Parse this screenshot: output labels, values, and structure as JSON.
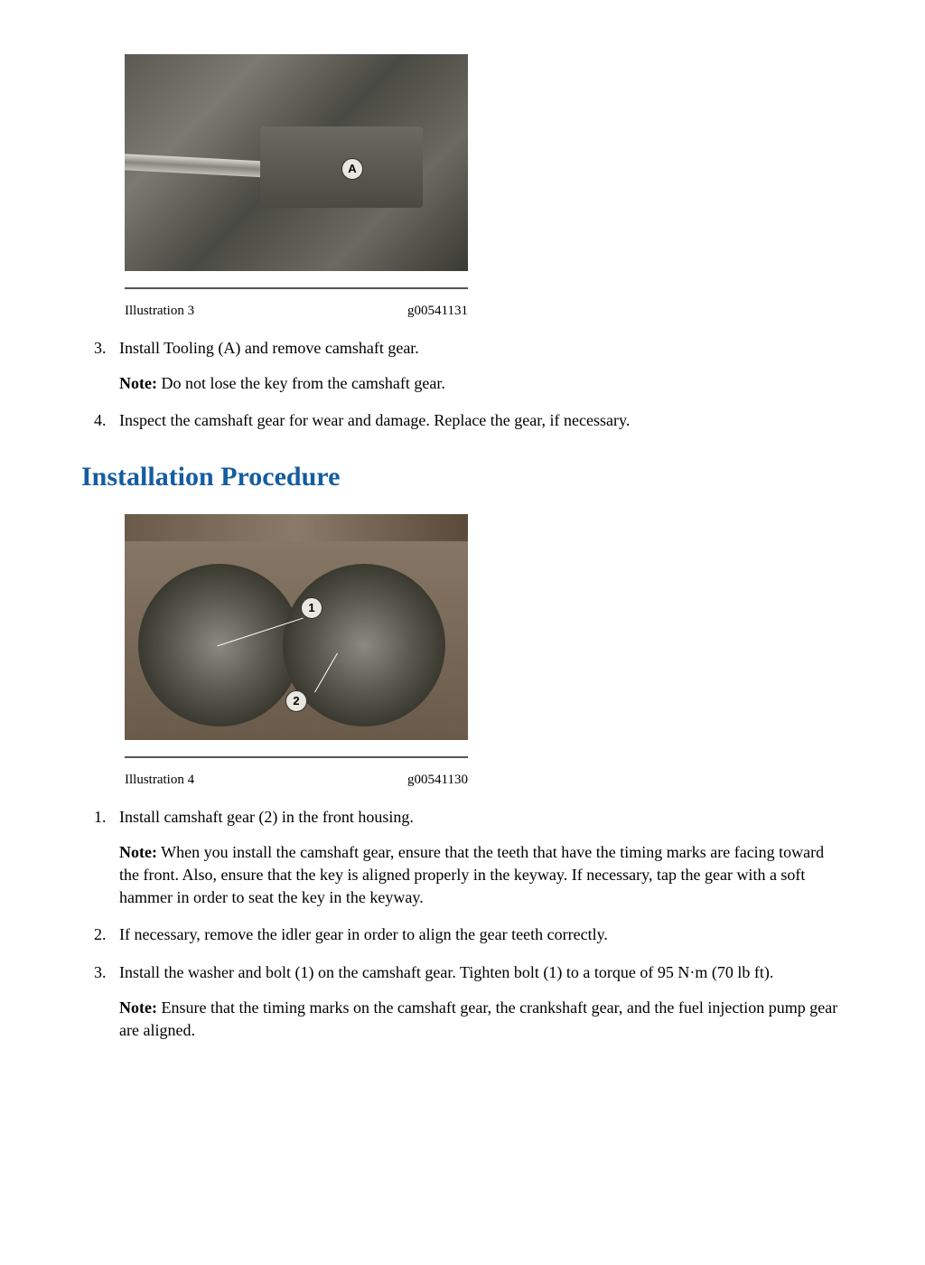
{
  "figure3": {
    "label": "Illustration 3",
    "ref": "g00541131",
    "callout": "A"
  },
  "removal_steps": {
    "start": 3,
    "items": [
      {
        "text": "Install Tooling (A) and remove camshaft gear.",
        "note_label": "Note:",
        "note_text": " Do not lose the key from the camshaft gear."
      },
      {
        "text": "Inspect the camshaft gear for wear and damage. Replace the gear, if necessary."
      }
    ]
  },
  "heading": "Installation Procedure",
  "figure4": {
    "label": "Illustration 4",
    "ref": "g00541130",
    "callout1": "1",
    "callout2": "2"
  },
  "install_steps": {
    "start": 1,
    "items": [
      {
        "text": "Install camshaft gear (2) in the front housing.",
        "note_label": "Note:",
        "note_text": " When you install the camshaft gear, ensure that the teeth that have the timing marks are facing toward the front. Also, ensure that the key is aligned properly in the keyway. If necessary, tap the gear with a soft hammer in order to seat the key in the keyway."
      },
      {
        "text": "If necessary, remove the idler gear in order to align the gear teeth correctly."
      },
      {
        "text": "Install the washer and bolt (1) on the camshaft gear. Tighten bolt (1) to a torque of 95 N·m (70 lb ft).",
        "note_label": "Note:",
        "note_text": " Ensure that the timing marks on the camshaft gear, the crankshaft gear, and the fuel injection pump gear are aligned."
      }
    ]
  }
}
